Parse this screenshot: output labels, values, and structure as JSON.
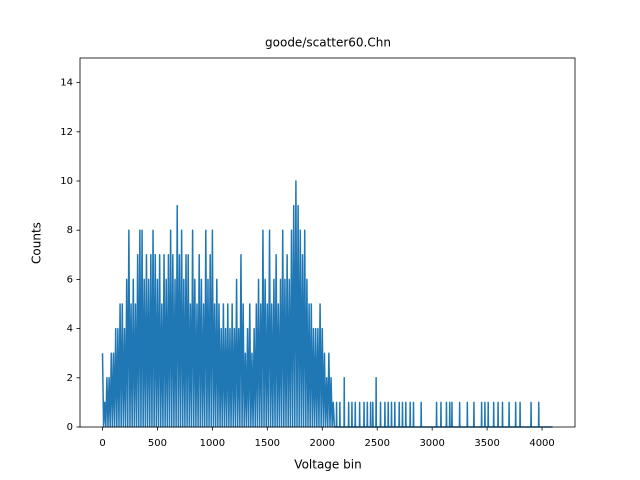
{
  "chart_data": {
    "type": "line",
    "title": "goode/scatter60.Chn",
    "x_label": "Voltage bin",
    "y_label": "Counts",
    "color": "#1f77b4",
    "xlim": [
      -204.75,
      4299.75
    ],
    "ylim": [
      0,
      15
    ],
    "xticks": [
      0,
      500,
      1000,
      1500,
      2000,
      2500,
      3000,
      3500,
      4000
    ],
    "yticks": [
      0,
      2,
      4,
      6,
      8,
      10,
      12,
      14
    ],
    "grid": false,
    "x": [
      0,
      10,
      20,
      30,
      40,
      50,
      60,
      70,
      80,
      90,
      100,
      110,
      120,
      130,
      140,
      150,
      160,
      170,
      180,
      190,
      200,
      210,
      220,
      230,
      240,
      250,
      260,
      270,
      280,
      290,
      300,
      310,
      320,
      330,
      340,
      350,
      360,
      370,
      380,
      390,
      400,
      410,
      420,
      430,
      440,
      450,
      460,
      470,
      480,
      490,
      500,
      510,
      520,
      530,
      540,
      550,
      560,
      570,
      580,
      590,
      600,
      610,
      620,
      630,
      640,
      650,
      660,
      670,
      680,
      690,
      700,
      710,
      720,
      730,
      740,
      750,
      760,
      770,
      780,
      790,
      800,
      810,
      820,
      830,
      840,
      850,
      860,
      870,
      880,
      890,
      900,
      910,
      920,
      930,
      940,
      950,
      960,
      970,
      980,
      990,
      1000,
      1010,
      1020,
      1030,
      1040,
      1050,
      1060,
      1070,
      1080,
      1090,
      1100,
      1110,
      1120,
      1130,
      1140,
      1150,
      1160,
      1170,
      1180,
      1190,
      1200,
      1210,
      1220,
      1230,
      1240,
      1250,
      1260,
      1270,
      1280,
      1290,
      1300,
      1310,
      1320,
      1330,
      1340,
      1350,
      1360,
      1370,
      1380,
      1390,
      1400,
      1410,
      1420,
      1430,
      1440,
      1450,
      1460,
      1470,
      1480,
      1490,
      1500,
      1510,
      1520,
      1530,
      1540,
      1550,
      1560,
      1570,
      1580,
      1590,
      1600,
      1610,
      1620,
      1630,
      1640,
      1650,
      1660,
      1670,
      1680,
      1690,
      1700,
      1710,
      1720,
      1730,
      1740,
      1750,
      1760,
      1770,
      1780,
      1790,
      1800,
      1810,
      1820,
      1830,
      1840,
      1850,
      1860,
      1870,
      1880,
      1890,
      1900,
      1910,
      1920,
      1930,
      1940,
      1950,
      1960,
      1970,
      1980,
      1990,
      2000,
      2010,
      2020,
      2030,
      2040,
      2050,
      2060,
      2070,
      2080,
      2090,
      2100,
      2110,
      2128,
      2130,
      2132,
      2158,
      2160,
      2162,
      2198,
      2200,
      2202,
      2238,
      2240,
      2242,
      2268,
      2270,
      2272,
      2298,
      2300,
      2302,
      2338,
      2340,
      2342,
      2378,
      2380,
      2382,
      2408,
      2410,
      2412,
      2438,
      2440,
      2442,
      2458,
      2460,
      2462,
      2488,
      2490,
      2492,
      2528,
      2530,
      2532,
      2568,
      2570,
      2572,
      2598,
      2600,
      2602,
      2628,
      2630,
      2632,
      2658,
      2660,
      2662,
      2698,
      2700,
      2702,
      2728,
      2730,
      2732,
      2758,
      2760,
      2762,
      2798,
      2800,
      2802,
      2828,
      2830,
      2832,
      2898,
      2900,
      2902,
      3038,
      3040,
      3042,
      3078,
      3080,
      3082,
      3128,
      3130,
      3132,
      3158,
      3160,
      3162,
      3178,
      3180,
      3182,
      3248,
      3250,
      3252,
      3318,
      3320,
      3322,
      3378,
      3380,
      3382,
      3448,
      3450,
      3452,
      3478,
      3480,
      3482,
      3508,
      3510,
      3512,
      3558,
      3560,
      3562,
      3598,
      3600,
      3602,
      3638,
      3640,
      3642,
      3698,
      3700,
      3702,
      3758,
      3760,
      3762,
      3798,
      3800,
      3802,
      3898,
      3900,
      3902,
      3968,
      3970,
      3972,
      4095
    ],
    "values": [
      3,
      0,
      1,
      0,
      2,
      0,
      2,
      0,
      3,
      0,
      3,
      0,
      4,
      0,
      4,
      0,
      5,
      0,
      5,
      0,
      4,
      0,
      6,
      0,
      8,
      0,
      5,
      0,
      6,
      0,
      5,
      0,
      7,
      0,
      8,
      0,
      8,
      0,
      6,
      0,
      7,
      0,
      6,
      0,
      7,
      0,
      8,
      0,
      7,
      0,
      6,
      0,
      7,
      0,
      5,
      0,
      7,
      0,
      6,
      0,
      7,
      0,
      8,
      0,
      7,
      0,
      6,
      0,
      9,
      0,
      7,
      0,
      8,
      0,
      6,
      0,
      7,
      0,
      7,
      0,
      5,
      0,
      8,
      0,
      6,
      0,
      5,
      0,
      7,
      0,
      6,
      0,
      5,
      0,
      8,
      0,
      6,
      0,
      7,
      0,
      8,
      0,
      5,
      0,
      6,
      0,
      5,
      0,
      4,
      0,
      5,
      0,
      4,
      0,
      5,
      0,
      4,
      0,
      5,
      0,
      4,
      0,
      6,
      0,
      4,
      0,
      7,
      0,
      5,
      0,
      3,
      0,
      4,
      0,
      5,
      0,
      3,
      0,
      4,
      0,
      5,
      0,
      6,
      0,
      5,
      0,
      8,
      0,
      6,
      0,
      5,
      0,
      8,
      0,
      5,
      0,
      6,
      0,
      7,
      0,
      5,
      0,
      6,
      0,
      8,
      0,
      6,
      0,
      7,
      0,
      6,
      0,
      8,
      0,
      9,
      0,
      10,
      0,
      9,
      0,
      8,
      0,
      7,
      0,
      8,
      0,
      6,
      0,
      5,
      0,
      5,
      0,
      4,
      0,
      4,
      0,
      4,
      0,
      5,
      0,
      4,
      0,
      3,
      0,
      2,
      0,
      3,
      0,
      2,
      0,
      1,
      0,
      0,
      1,
      0,
      0,
      1,
      0,
      0,
      2,
      0,
      0,
      1,
      0,
      0,
      1,
      0,
      0,
      1,
      0,
      0,
      1,
      0,
      0,
      1,
      0,
      0,
      1,
      0,
      0,
      1,
      0,
      0,
      1,
      0,
      0,
      2,
      0,
      0,
      1,
      0,
      0,
      1,
      0,
      0,
      1,
      0,
      0,
      1,
      0,
      0,
      1,
      0,
      0,
      1,
      0,
      0,
      1,
      0,
      0,
      1,
      0,
      0,
      1,
      0,
      0,
      1,
      0,
      0,
      1,
      0,
      0,
      1,
      0,
      0,
      1,
      0,
      0,
      1,
      0,
      0,
      1,
      0,
      0,
      1,
      0,
      0,
      1,
      0,
      0,
      1,
      0,
      0,
      1,
      0,
      0,
      1,
      0,
      0,
      1,
      0,
      0,
      1,
      0,
      0,
      1,
      0,
      0,
      1,
      0,
      0,
      1,
      0,
      0,
      1,
      0,
      0,
      1,
      0,
      0,
      1,
      0,
      0,
      1,
      0,
      0,
      1,
      0,
      0
    ]
  }
}
